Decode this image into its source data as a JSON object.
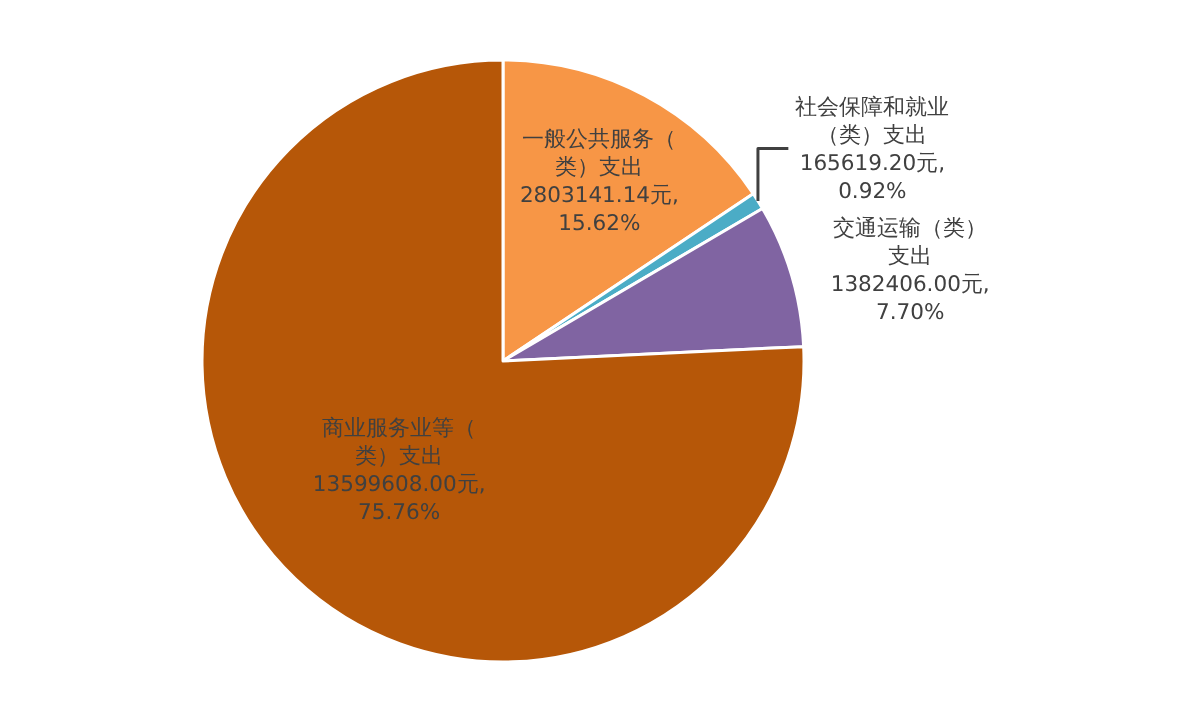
{
  "chart_data": {
    "type": "pie",
    "categories": [
      "一般公共服务（类）支出",
      "社会保障和就业（类）支出",
      "交通运输（类）支出",
      "商业服务业等（类）支出"
    ],
    "values": [
      15.62,
      0.92,
      7.7,
      75.76
    ],
    "colors": [
      "#f79646",
      "#4bacc6",
      "#8064a2",
      "#b65708"
    ],
    "value_labels": [
      "2803141.14元, 15.62%",
      "165619.20元, 0.92%",
      "1382406.00元, 7.70%",
      "13599608.00元, 75.76%"
    ],
    "legend": false
  }
}
